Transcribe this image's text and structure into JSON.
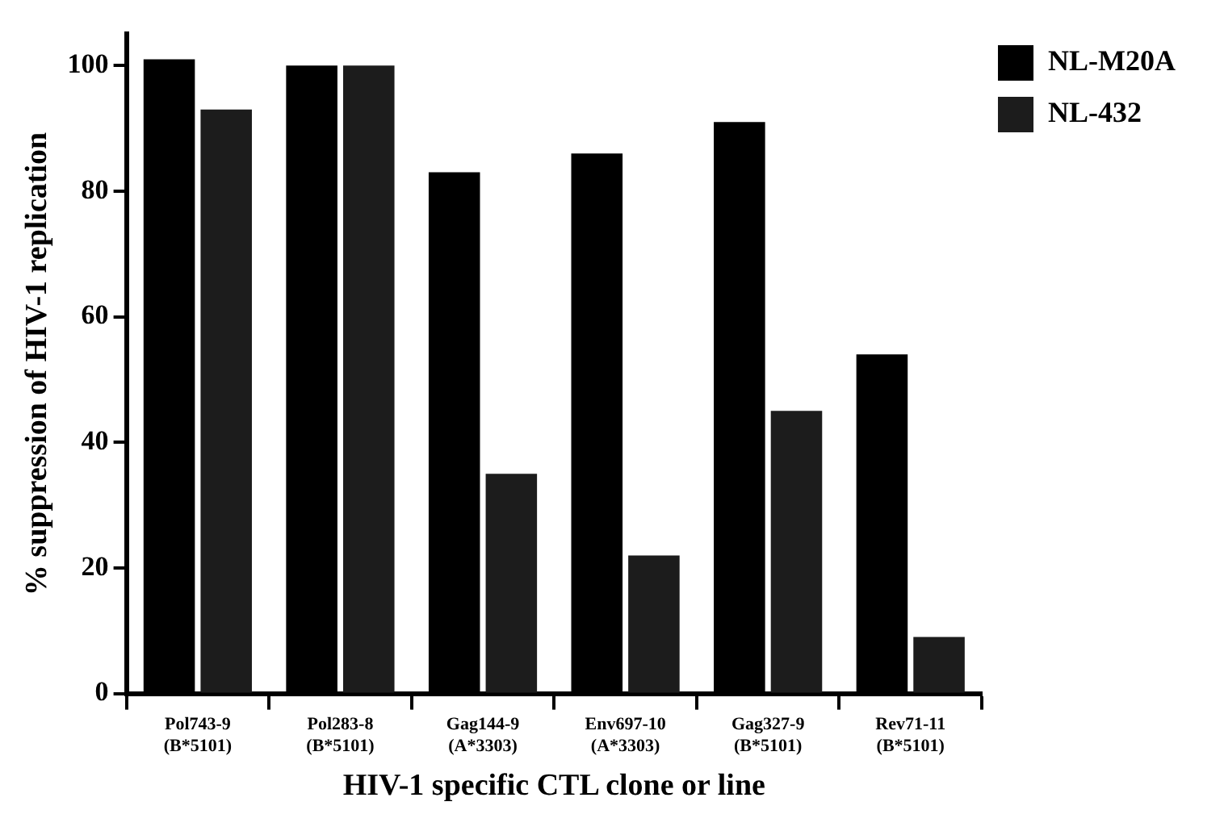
{
  "chart_data": {
    "type": "bar",
    "xlabel": "HIV-1 specific CTL clone or line",
    "ylabel": "% suppression of HIV-1 replication",
    "categories": [
      "Pol743-9\n(B*5101)",
      "Pol283-8\n(B*5101)",
      "Gag144-9\n(A*3303)",
      "Env697-10\n(A*3303)",
      "Gag327-9\n(B*5101)",
      "Rev71-11\n(B*5101)"
    ],
    "series": [
      {
        "name": "NL-M20A",
        "color": "#000000",
        "values": [
          101,
          100,
          83,
          86,
          91,
          54
        ]
      },
      {
        "name": "NL-432",
        "color": "#1c1c1c",
        "values": [
          93,
          100,
          35,
          22,
          45,
          9
        ]
      }
    ],
    "ylim": [
      0,
      105
    ],
    "yticks": [
      0,
      20,
      40,
      60,
      80,
      100
    ],
    "grid": false,
    "legend": "top right"
  }
}
